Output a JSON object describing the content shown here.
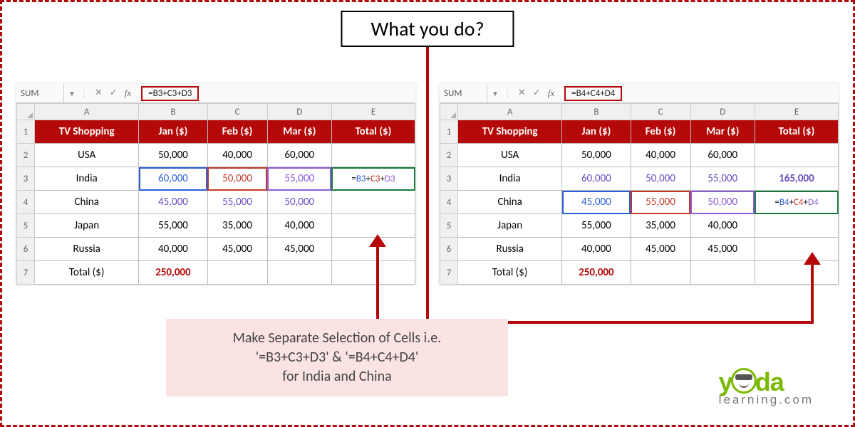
{
  "title": "What you do?",
  "columns": [
    "A",
    "B",
    "C",
    "D",
    "E"
  ],
  "header_row": [
    "TV Shopping",
    "Jan ($)",
    "Feb ($)",
    "Mar ($)",
    "Total ($)"
  ],
  "rows": [
    {
      "n": "2",
      "label": "USA",
      "jan": "50,000",
      "feb": "40,000",
      "mar": "60,000"
    },
    {
      "n": "3",
      "label": "India",
      "jan": "60,000",
      "feb": "50,000",
      "mar": "55,000"
    },
    {
      "n": "4",
      "label": "China",
      "jan": "45,000",
      "feb": "55,000",
      "mar": "50,000"
    },
    {
      "n": "5",
      "label": "Japan",
      "jan": "55,000",
      "feb": "35,000",
      "mar": "40,000"
    },
    {
      "n": "6",
      "label": "Russia",
      "jan": "40,000",
      "feb": "45,000",
      "mar": "45,000"
    }
  ],
  "total_label": "Total ($)",
  "total_jan": "250,000",
  "left": {
    "name": "SUM",
    "formula": "=B3+C3+D3",
    "active_parts": {
      "p1": "B3",
      "p2": "C3",
      "p3": "D3"
    },
    "highlight_row": "3"
  },
  "right": {
    "name": "SUM",
    "formula": "=B4+C4+D4",
    "active_parts": {
      "p1": "B4",
      "p2": "C4",
      "p3": "D4"
    },
    "highlight_row": "4",
    "india_total": "165,000"
  },
  "caption": {
    "l1": "Make Separate Selection of Cells i.e.",
    "l2": "'=B3+C3+D3' & '=B4+C4+D4'",
    "l3": "for India and China"
  },
  "logo": {
    "brand": "yoda",
    "sub": "learning.com"
  },
  "colors": {
    "accent": "#b50808",
    "header_bg": "#b50808",
    "header_fg": "#ffffff",
    "sel_blue": "#2b5fd9",
    "sel_red": "#c0392b",
    "sel_purple": "#8e5bd6",
    "pink_bg": "#fbe3e3",
    "logo_green": "#7bb800",
    "logo_gray": "#777777"
  }
}
